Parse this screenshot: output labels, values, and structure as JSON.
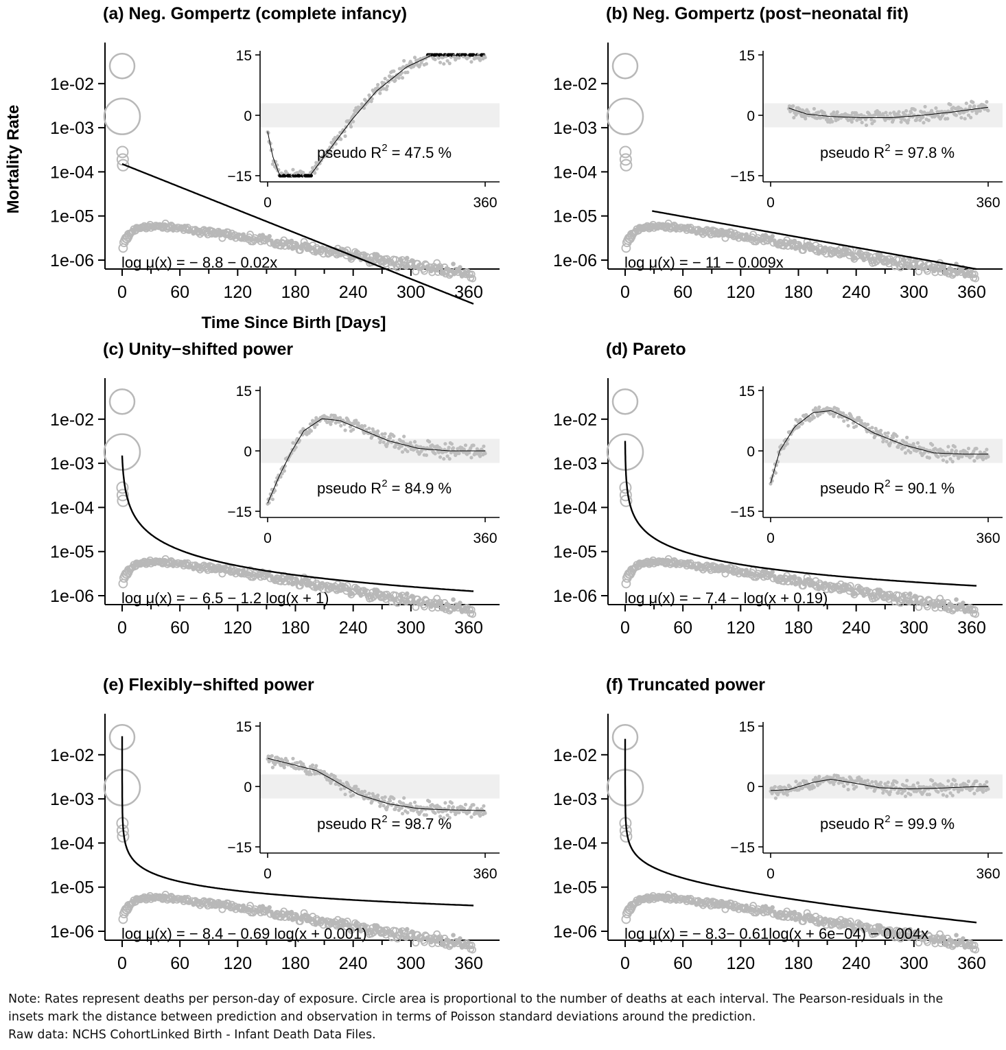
{
  "figure": {
    "y_axis_label": "Mortality Rate",
    "x_axis_label": "Time Since Birth [Days]",
    "main_y_ticks": [
      "1e-06",
      "1e-05",
      "1e-04",
      "1e-03",
      "1e-02"
    ],
    "main_x_ticks": [
      "0",
      "60",
      "120",
      "180",
      "240",
      "300",
      "360"
    ],
    "inset_y_ticks": [
      "-15",
      "0",
      "15"
    ],
    "inset_x_ticks": [
      "0",
      "360"
    ]
  },
  "chart_data": [
    {
      "type": "scatter",
      "title": "(a) Neg. Gompertz (complete infancy)",
      "xlabel": "Time Since Birth [Days]",
      "ylabel": "Mortality Rate",
      "y_scale": "log",
      "xlim": [
        -18,
        385
      ],
      "ylim_log10": [
        -6.2,
        -0.8
      ],
      "equation": "log μ(x) = − 8.8 − 0.02x",
      "fit": {
        "form": "neg_gompertz",
        "a": -8.8,
        "b": 0.02,
        "x_from": 0
      },
      "observed": {
        "description": "observed rates (grey circles), area proportional to deaths"
      },
      "large_circles": [
        {
          "x": 0,
          "y": 0.025
        },
        {
          "x": 0,
          "y": 0.0018
        }
      ],
      "inset": {
        "title": "Pearson residuals",
        "pseudo_r2_label": "pseudo R",
        "pseudo_r2_value": "= 47.5 %",
        "ylim": [
          -15,
          15
        ],
        "xlim": [
          0,
          360
        ],
        "smooth": [
          [
            0,
            -4
          ],
          [
            8,
            -10
          ],
          [
            20,
            -15
          ],
          [
            70,
            -15
          ],
          [
            100,
            -9
          ],
          [
            140,
            -1
          ],
          [
            180,
            6
          ],
          [
            230,
            12
          ],
          [
            270,
            14.8
          ],
          [
            360,
            15
          ]
        ]
      }
    },
    {
      "type": "scatter",
      "title": "(b) Neg. Gompertz (post−neonatal fit)",
      "y_scale": "log",
      "equation": "log μ(x) = − 11 − 0.009x",
      "fit": {
        "form": "neg_gompertz",
        "a": -11.0,
        "b": 0.009,
        "x_from": 28
      },
      "large_circles": [
        {
          "x": 0,
          "y": 0.025
        },
        {
          "x": 0,
          "y": 0.0018
        }
      ],
      "inset": {
        "pseudo_r2_label": "pseudo R",
        "pseudo_r2_value": "= 97.8 %",
        "ylim": [
          -15,
          15
        ],
        "smooth": [
          [
            30,
            1.8
          ],
          [
            60,
            0.3
          ],
          [
            100,
            -0.3
          ],
          [
            150,
            -0.6
          ],
          [
            200,
            -0.6
          ],
          [
            250,
            0
          ],
          [
            300,
            0.8
          ],
          [
            360,
            2
          ]
        ]
      }
    },
    {
      "type": "scatter",
      "title": "(c) Unity−shifted power",
      "y_scale": "log",
      "equation": "log μ(x) = − 6.5 − 1.2 log(x + 1)",
      "fit": {
        "form": "power",
        "a": -6.5,
        "b": 1.2,
        "shift": 1
      },
      "large_circles": [
        {
          "x": 0,
          "y": 0.025
        },
        {
          "x": 0,
          "y": 0.0018
        }
      ],
      "inset": {
        "pseudo_r2_label": "pseudo R",
        "pseudo_r2_value": "= 84.9 %",
        "ylim": [
          -15,
          15
        ],
        "smooth": [
          [
            0,
            -13
          ],
          [
            20,
            -6
          ],
          [
            40,
            0
          ],
          [
            60,
            5
          ],
          [
            90,
            8
          ],
          [
            120,
            7.5
          ],
          [
            160,
            5
          ],
          [
            200,
            2.5
          ],
          [
            250,
            0.6
          ],
          [
            300,
            0
          ],
          [
            360,
            0
          ]
        ]
      }
    },
    {
      "type": "scatter",
      "title": "(d) Pareto",
      "y_scale": "log",
      "equation": "log μ(x) = − 7.4 − log(x + 0.19)",
      "fit": {
        "form": "power",
        "a": -7.4,
        "b": 1.0,
        "shift": 0.19
      },
      "large_circles": [
        {
          "x": 0,
          "y": 0.025
        },
        {
          "x": 0,
          "y": 0.0018
        }
      ],
      "inset": {
        "pseudo_r2_label": "pseudo R",
        "pseudo_r2_value": "= 90.1 %",
        "ylim": [
          -15,
          15
        ],
        "smooth": [
          [
            0,
            -8
          ],
          [
            15,
            0
          ],
          [
            40,
            6
          ],
          [
            70,
            9.5
          ],
          [
            100,
            10
          ],
          [
            130,
            8
          ],
          [
            170,
            4.5
          ],
          [
            220,
            1.5
          ],
          [
            270,
            -0.5
          ],
          [
            320,
            -0.8
          ],
          [
            360,
            -0.8
          ]
        ]
      }
    },
    {
      "type": "scatter",
      "title": "(e) Flexibly−shifted power",
      "y_scale": "log",
      "equation": "log μ(x) = − 8.4 − 0.69 log(x + 0.001)",
      "fit": {
        "form": "power",
        "a": -8.4,
        "b": 0.69,
        "shift": 0.001
      },
      "large_circles": [
        {
          "x": 0,
          "y": 0.025
        },
        {
          "x": 0,
          "y": 0.0018
        }
      ],
      "inset": {
        "pseudo_r2_label": "pseudo R",
        "pseudo_r2_value": "= 98.7 %",
        "ylim": [
          -15,
          15
        ],
        "smooth": [
          [
            0,
            7
          ],
          [
            40,
            5.5
          ],
          [
            80,
            4
          ],
          [
            110,
            1.5
          ],
          [
            150,
            -2
          ],
          [
            200,
            -4.3
          ],
          [
            250,
            -5.5
          ],
          [
            300,
            -5.8
          ],
          [
            360,
            -6
          ]
        ]
      }
    },
    {
      "type": "scatter",
      "title": "(f) Truncated power",
      "y_scale": "log",
      "equation": "log μ(x) = − 8.3− 0.61log(x + 6e−04) − 0.004x",
      "fit": {
        "form": "truncated_power",
        "a": -8.3,
        "b": 0.61,
        "shift": 0.0006,
        "c": 0.004
      },
      "large_circles": [
        {
          "x": 0,
          "y": 0.025
        },
        {
          "x": 0,
          "y": 0.0018
        }
      ],
      "inset": {
        "pseudo_r2_label": "pseudo R",
        "pseudo_r2_value": "= 99.9 %",
        "ylim": [
          -15,
          15
        ],
        "smooth": [
          [
            0,
            -1
          ],
          [
            30,
            -0.8
          ],
          [
            70,
            1
          ],
          [
            100,
            1.8
          ],
          [
            140,
            0.8
          ],
          [
            180,
            -0.3
          ],
          [
            230,
            -0.6
          ],
          [
            280,
            -0.4
          ],
          [
            330,
            -0.1
          ],
          [
            360,
            0
          ]
        ]
      }
    }
  ],
  "note": {
    "line1": "Note: Rates represent deaths per person-day of exposure. Circle area is proportional to the number of deaths at each interval. The Pearson-residuals in the",
    "line2": "insets mark the distance between prediction and observation in terms of Poisson standard deviations around the prediction.",
    "line3": "Raw data: NCHS CohortLinked Birth - Infant Death Data Files."
  }
}
